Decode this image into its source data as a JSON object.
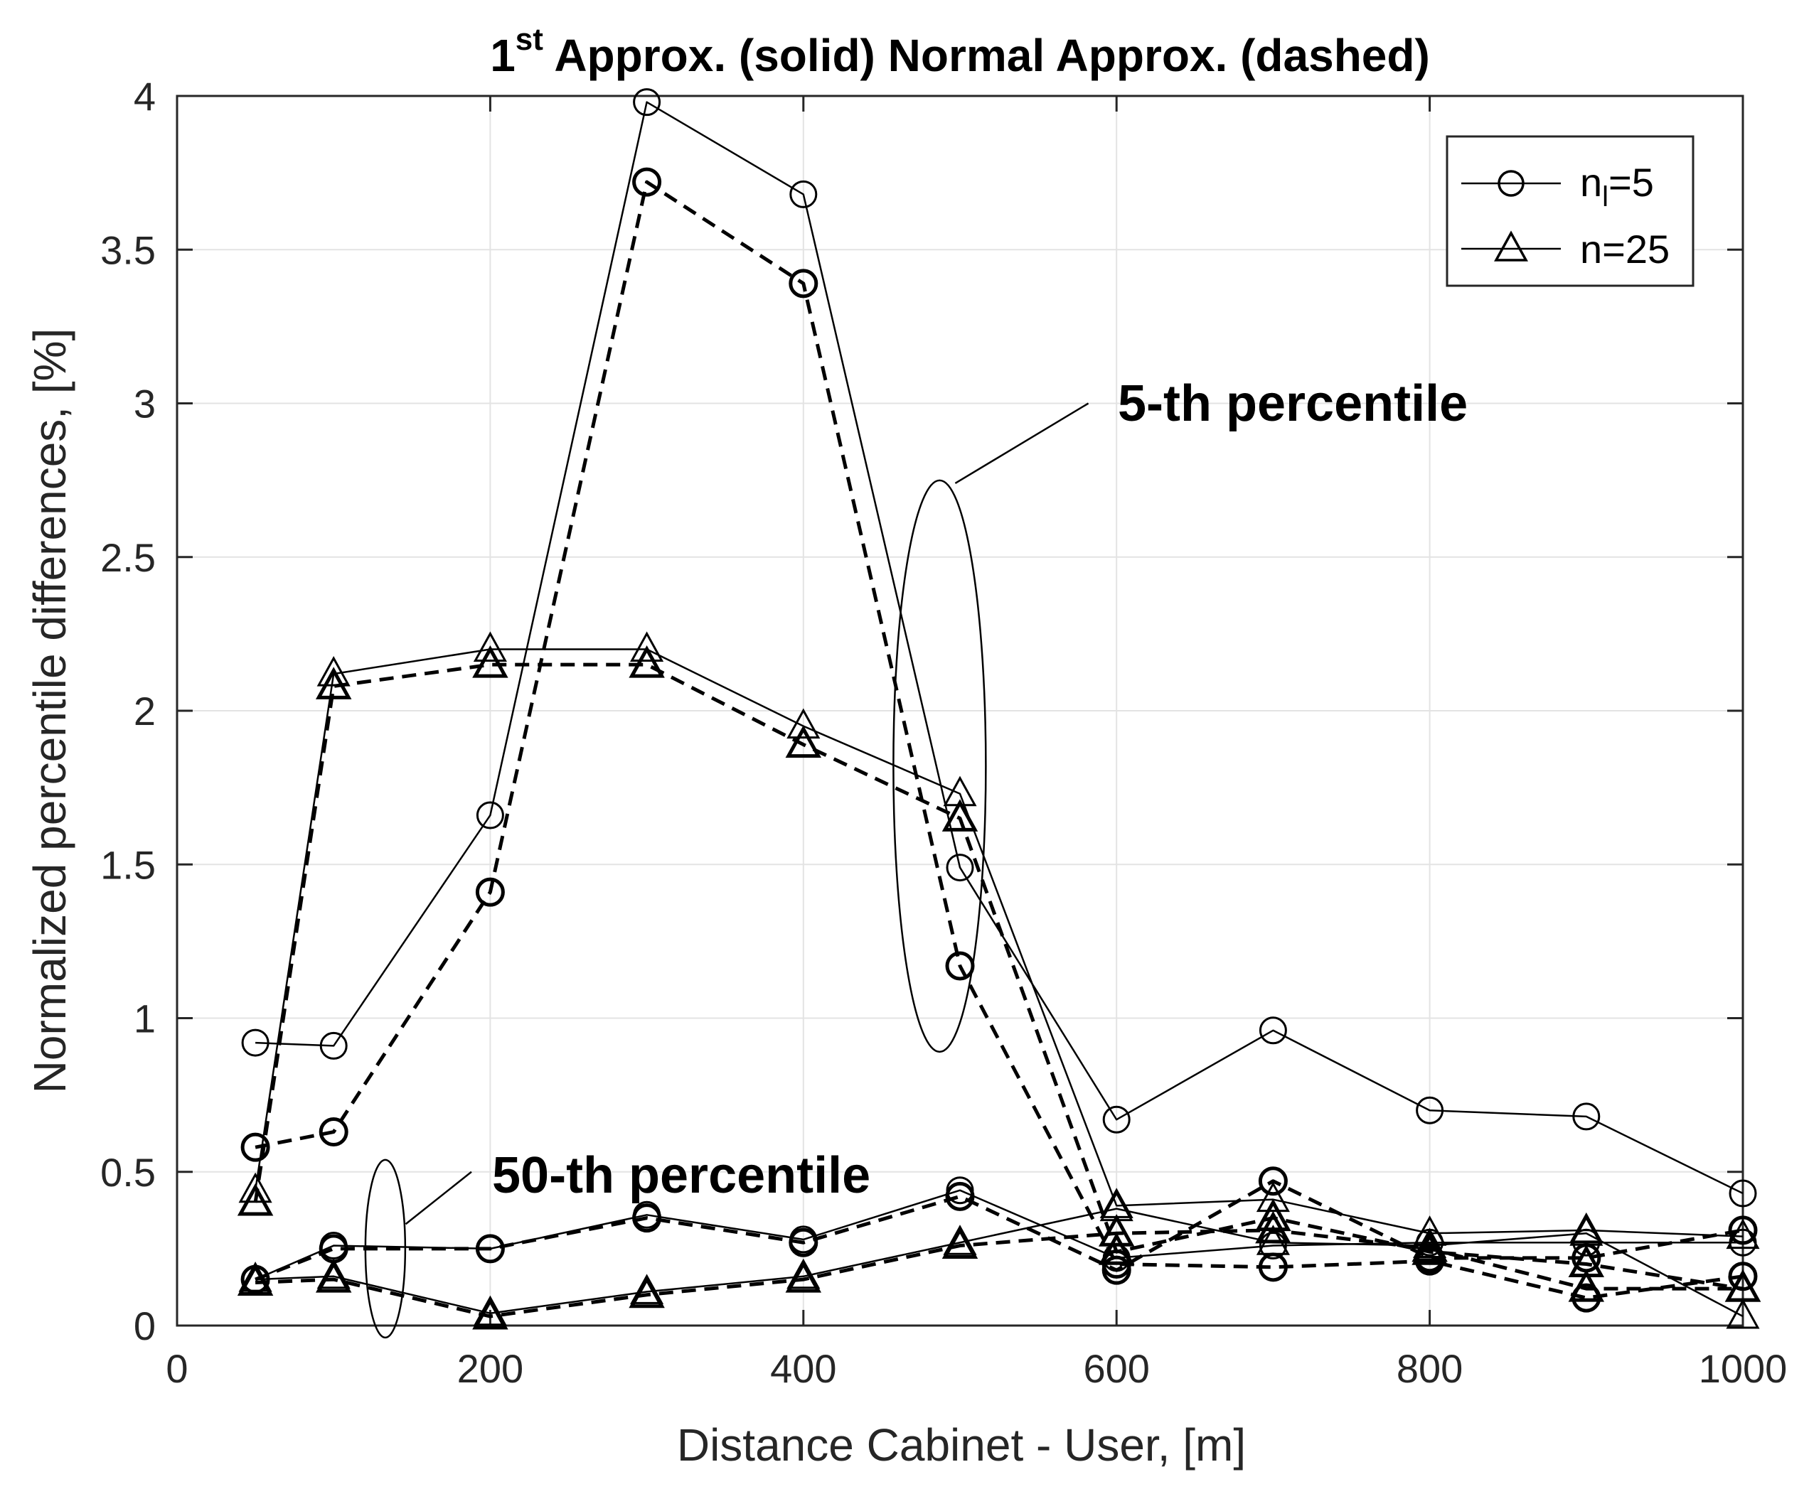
{
  "chart_data": {
    "type": "line",
    "title_main": "1",
    "title_sup": "st",
    "title_rest": " Approx. (solid) Normal Approx. (dashed)",
    "xlabel": "Distance Cabinet - User, [m]",
    "ylabel": "Normalized percentile differences, [%]",
    "xlim": [
      0,
      1000
    ],
    "ylim": [
      0,
      4
    ],
    "xticks": [
      0,
      200,
      400,
      600,
      800,
      1000
    ],
    "xtick_labels": [
      "0",
      "200",
      "400",
      "600",
      "800",
      "1000"
    ],
    "yticks": [
      0,
      0.5,
      1,
      1.5,
      2,
      2.5,
      3,
      3.5,
      4
    ],
    "ytick_labels": [
      "0",
      "0.5",
      "1",
      "1.5",
      "2",
      "2.5",
      "3",
      "3.5",
      "4"
    ],
    "grid": true,
    "legend_position": "top-right",
    "legend": [
      {
        "label_main": "n",
        "label_sub": "l",
        "label_rest": "=5",
        "marker": "circle"
      },
      {
        "label_main": "n=25",
        "label_sub": "",
        "label_rest": "",
        "marker": "triangle"
      }
    ],
    "annotations": [
      {
        "text": "5-th percentile"
      },
      {
        "text": "50-th percentile"
      }
    ],
    "x": [
      50,
      100,
      200,
      300,
      400,
      500,
      600,
      700,
      800,
      900,
      1000
    ],
    "series": [
      {
        "name": "n_l=5, 5-th percentile, 1st Approx.",
        "marker": "circle",
        "style": "solid",
        "values": [
          0.92,
          0.91,
          1.66,
          3.98,
          3.68,
          1.49,
          0.67,
          0.96,
          0.7,
          0.68,
          0.43
        ]
      },
      {
        "name": "n_l=5, 5-th percentile, Normal Approx.",
        "marker": "circle",
        "style": "dashed",
        "values": [
          0.58,
          0.63,
          1.41,
          3.72,
          3.39,
          1.17,
          0.2,
          0.19,
          0.21,
          0.09,
          0.16
        ]
      },
      {
        "name": "n=25, 5-th percentile, 1st Approx.",
        "marker": "triangle",
        "style": "solid",
        "values": [
          0.44,
          2.12,
          2.2,
          2.2,
          1.95,
          1.73,
          0.39,
          0.41,
          0.3,
          0.31,
          0.29
        ]
      },
      {
        "name": "n=25, 5-th percentile, Normal Approx.",
        "marker": "triangle",
        "style": "dashed",
        "values": [
          0.4,
          2.08,
          2.15,
          2.15,
          1.89,
          1.65,
          0.24,
          0.35,
          0.24,
          0.2,
          0.12
        ]
      },
      {
        "name": "n_l=5, 50-th percentile, 1st Approx.",
        "marker": "circle",
        "style": "solid",
        "values": [
          0.15,
          0.26,
          0.25,
          0.36,
          0.28,
          0.44,
          0.22,
          0.26,
          0.27,
          0.27,
          0.27
        ]
      },
      {
        "name": "n_l=5, 50-th percentile, Normal Approx.",
        "marker": "circle",
        "style": "dashed",
        "values": [
          0.15,
          0.25,
          0.25,
          0.35,
          0.27,
          0.42,
          0.18,
          0.47,
          0.22,
          0.22,
          0.31
        ]
      },
      {
        "name": "n=25, 50-th percentile, 1st Approx.",
        "marker": "triangle",
        "style": "solid",
        "values": [
          0.15,
          0.16,
          0.04,
          0.11,
          0.16,
          0.27,
          0.38,
          0.27,
          0.26,
          0.3,
          0.03
        ]
      },
      {
        "name": "n=25, 50-th percentile, Normal Approx.",
        "marker": "triangle",
        "style": "dashed",
        "values": [
          0.14,
          0.15,
          0.03,
          0.1,
          0.15,
          0.26,
          0.3,
          0.31,
          0.25,
          0.12,
          0.12
        ]
      }
    ]
  }
}
